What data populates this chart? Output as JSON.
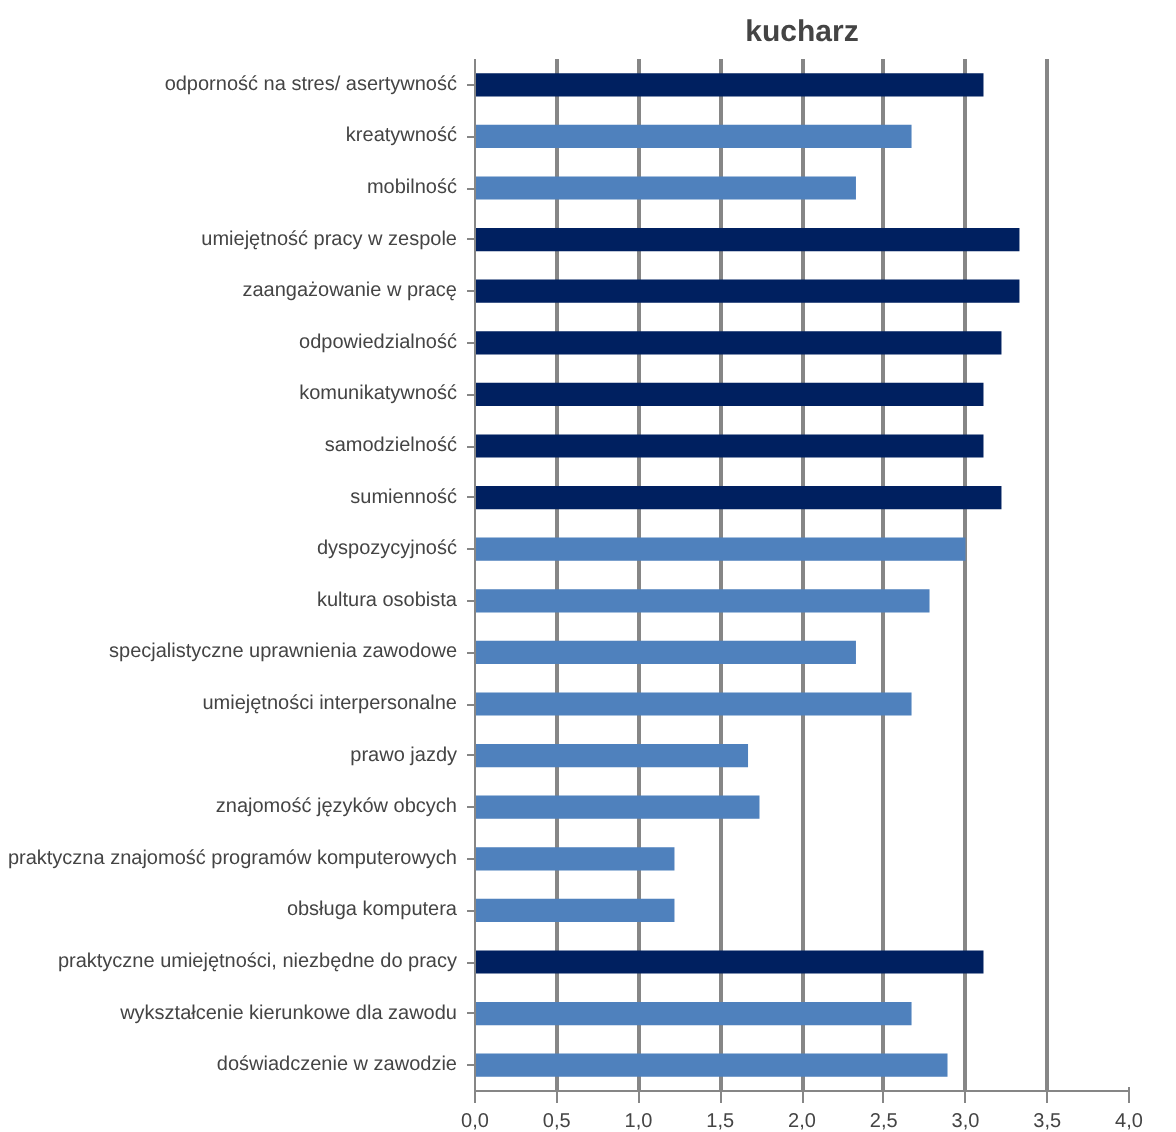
{
  "chart_data": {
    "type": "bar",
    "orientation": "horizontal",
    "title": "kucharz",
    "categories": [
      "odporność na stres/ asertywność",
      "kreatywność",
      "mobilność",
      "umiejętność pracy w zespole",
      "zaangażowanie w pracę",
      "odpowiedzialność",
      "komunikatywność",
      "samodzielność",
      "sumienność",
      "dyspozycyjność",
      "kultura osobista",
      "specjalistyczne uprawnienia zawodowe",
      "umiejętności interpersonalne",
      "prawo jazdy",
      "znajomość języków obcych",
      "praktyczna znajomość programów komputerowych",
      "obsługa komputera",
      "praktyczne umiejętności, niezbędne do pracy",
      "wykształcenie kierunkowe dla zawodu",
      "doświadczenie w zawodzie"
    ],
    "values": [
      3.11,
      2.67,
      2.33,
      3.33,
      3.33,
      3.22,
      3.11,
      3.11,
      3.22,
      3.0,
      2.78,
      2.33,
      2.67,
      1.67,
      1.74,
      1.22,
      1.22,
      3.11,
      2.67,
      2.89
    ],
    "colors": [
      "#002060",
      "#4f81bd",
      "#4f81bd",
      "#002060",
      "#002060",
      "#002060",
      "#002060",
      "#002060",
      "#002060",
      "#4f81bd",
      "#4f81bd",
      "#4f81bd",
      "#4f81bd",
      "#4f81bd",
      "#4f81bd",
      "#4f81bd",
      "#4f81bd",
      "#002060",
      "#4f81bd",
      "#4f81bd"
    ],
    "xlim": [
      0,
      4
    ],
    "xticks": [
      {
        "value": 0,
        "label": "0,0"
      },
      {
        "value": 0.5,
        "label": "0,5"
      },
      {
        "value": 1,
        "label": "1,0"
      },
      {
        "value": 1.5,
        "label": "1,5"
      },
      {
        "value": 2,
        "label": "2,0"
      },
      {
        "value": 2.5,
        "label": "2,5"
      },
      {
        "value": 3,
        "label": "3,0"
      },
      {
        "value": 3.5,
        "label": "3,5"
      },
      {
        "value": 4,
        "label": "4,0"
      }
    ],
    "grid": "x"
  }
}
